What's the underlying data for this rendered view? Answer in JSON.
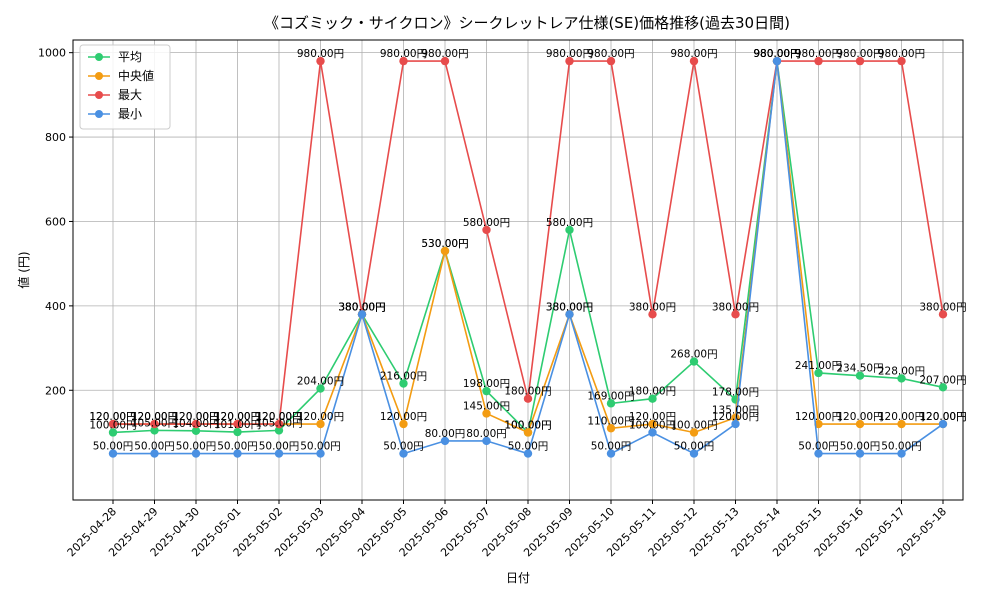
{
  "chart_data": {
    "type": "line",
    "title": "《コズミック・サイクロン》シークレットレア仕様(SE)価格推移(過去30日間)",
    "xlabel": "日付",
    "ylabel": "値 (円)",
    "ylim": [
      -60,
      1030
    ],
    "yticks": [
      200,
      400,
      600,
      800,
      1000
    ],
    "grid": true,
    "legend_position": "top-left",
    "label_suffix": "円",
    "categories": [
      "2025-04-28",
      "2025-04-29",
      "2025-04-30",
      "2025-05-01",
      "2025-05-02",
      "2025-05-03",
      "2025-05-04",
      "2025-05-05",
      "2025-05-06",
      "2025-05-07",
      "2025-05-08",
      "2025-05-09",
      "2025-05-10",
      "2025-05-11",
      "2025-05-12",
      "2025-05-13",
      "2025-05-14",
      "2025-05-15",
      "2025-05-16",
      "2025-05-17",
      "2025-05-18"
    ],
    "series": [
      {
        "name": "平均",
        "color": "#2ecc71",
        "values": [
          100.0,
          105.0,
          104.0,
          101.0,
          105.0,
          204.0,
          380.0,
          216.0,
          530.0,
          198.0,
          100.0,
          580.0,
          169.0,
          180.0,
          268.0,
          178.0,
          980.0,
          241.0,
          234.5,
          228.0,
          207.0
        ]
      },
      {
        "name": "中央値",
        "color": "#f39c12",
        "values": [
          120.0,
          120.0,
          120.0,
          120.0,
          120.0,
          120.0,
          380.0,
          120.0,
          530.0,
          145.0,
          100.0,
          380.0,
          110.0,
          120.0,
          100.0,
          135.0,
          980.0,
          120.0,
          120.0,
          120.0,
          120.0
        ]
      },
      {
        "name": "最大",
        "color": "#e74c4c",
        "values": [
          120.0,
          120.0,
          120.0,
          120.0,
          120.0,
          980.0,
          380.0,
          980.0,
          980.0,
          580.0,
          180.0,
          980.0,
          980.0,
          380.0,
          980.0,
          380.0,
          980.0,
          980.0,
          980.0,
          980.0,
          380.0
        ]
      },
      {
        "name": "最小",
        "color": "#4a90e2",
        "values": [
          50.0,
          50.0,
          50.0,
          50.0,
          50.0,
          50.0,
          380.0,
          50.0,
          80.0,
          80.0,
          50.0,
          380.0,
          50.0,
          100.0,
          50.0,
          120.0,
          980.0,
          50.0,
          50.0,
          50.0,
          120.0
        ]
      }
    ]
  }
}
